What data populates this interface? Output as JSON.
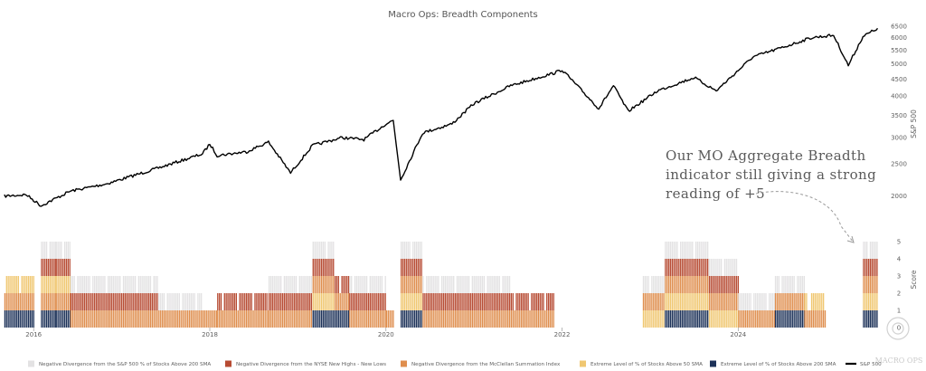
{
  "colors": {
    "negative_divergence_sma200": "#e3e2e3",
    "negative_divergence_nyse": "#b74b33",
    "negative_divergence_mcclellan": "#df8e4e",
    "extreme_sma50": "#f0c771",
    "extreme_sma200": "#1c3158",
    "sp500_line": "#000000"
  },
  "watermark": {
    "text": "MACRO OPS",
    "icon": "circular-logo-icon"
  },
  "annotation": {
    "lines": [
      "Our MO Aggregate Breadth",
      "indicator still giving a strong",
      "reading of +5"
    ]
  },
  "chart_data": {
    "title": "Macro Ops: Breadth Components",
    "price_panel": {
      "type": "line",
      "series_name": "S&P 500",
      "ylabel": "S&P 500",
      "y_scale": "log",
      "yticks": [
        2000,
        2500,
        3000,
        3500,
        4000,
        4500,
        5000,
        5500,
        6000,
        6500
      ],
      "x": [
        "2015-09",
        "2015-12",
        "2016-02",
        "2016-06",
        "2016-11",
        "2017-06",
        "2017-12",
        "2018-01",
        "2018-02",
        "2018-06",
        "2018-09",
        "2018-12",
        "2019-03",
        "2019-07",
        "2019-10",
        "2020-01",
        "2020-02",
        "2020-03",
        "2020-06",
        "2020-10",
        "2021-01",
        "2021-06",
        "2021-12",
        "2022-01",
        "2022-06",
        "2022-08",
        "2022-10",
        "2023-02",
        "2023-07",
        "2023-10",
        "2024-03",
        "2024-07",
        "2024-11",
        "2025-02",
        "2025-04",
        "2025-06",
        "2025-08"
      ],
      "y": [
        2000,
        2020,
        1870,
        2070,
        2180,
        2430,
        2680,
        2870,
        2650,
        2720,
        2910,
        2350,
        2840,
        3000,
        2960,
        3300,
        3380,
        2240,
        3100,
        3300,
        3800,
        4300,
        4700,
        4800,
        3670,
        4300,
        3600,
        4150,
        4550,
        4150,
        5250,
        5600,
        6000,
        6100,
        4950,
        6050,
        6400
      ]
    },
    "score_panel": {
      "type": "bar",
      "ylabel": "Score",
      "yticks": [
        0,
        1,
        2,
        3,
        4,
        5
      ],
      "xticks": [
        "2016",
        "2018",
        "2020",
        "2022",
        "2024"
      ],
      "series": [
        {
          "name": "Extreme Level of % of Stocks Above 200 SMA",
          "color_key": "extreme_sma200"
        },
        {
          "name": "Negative Divergence from the McClellan Summation Index",
          "color_key": "negative_divergence_mcclellan"
        },
        {
          "name": "Extreme Level of % of Stocks Above 50 SMA",
          "color_key": "extreme_sma50"
        },
        {
          "name": "Negative Divergence from the NYSE New Highs - New Lows",
          "color_key": "negative_divergence_nyse"
        },
        {
          "name": "Negative Divergence from the S&P 500 % of Stocks Above 200 SMA",
          "color_key": "negative_divergence_sma200"
        }
      ],
      "episodes": [
        {
          "start": "2015-09",
          "end": "2016-01",
          "score": 3,
          "stack": [
            "extreme_sma200",
            "negative_divergence_mcclellan",
            "extreme_sma50"
          ]
        },
        {
          "start": "2016-02",
          "end": "2016-04",
          "score": 5,
          "stack": [
            "extreme_sma200",
            "negative_divergence_mcclellan",
            "extreme_sma50",
            "negative_divergence_nyse",
            "negative_divergence_sma200"
          ]
        },
        {
          "start": "2016-04",
          "end": "2016-06",
          "score": 5,
          "stack": [
            "extreme_sma200",
            "negative_divergence_mcclellan",
            "extreme_sma50",
            "negative_divergence_nyse",
            "negative_divergence_sma200"
          ]
        },
        {
          "start": "2016-06",
          "end": "2017-06",
          "score": 3,
          "stack": [
            "negative_divergence_mcclellan",
            "negative_divergence_nyse",
            "negative_divergence_sma200"
          ]
        },
        {
          "start": "2017-06",
          "end": "2017-12",
          "score": 2,
          "stack": [
            "negative_divergence_mcclellan",
            "negative_divergence_sma200"
          ]
        },
        {
          "start": "2017-12",
          "end": "2018-02",
          "score": 1,
          "stack": [
            "negative_divergence_mcclellan"
          ]
        },
        {
          "start": "2018-02",
          "end": "2018-09",
          "score": 2,
          "stack": [
            "negative_divergence_mcclellan",
            "negative_divergence_nyse"
          ]
        },
        {
          "start": "2018-09",
          "end": "2019-03",
          "score": 3,
          "stack": [
            "negative_divergence_mcclellan",
            "negative_divergence_nyse",
            "negative_divergence_sma200"
          ]
        },
        {
          "start": "2019-03",
          "end": "2019-06",
          "score": 5,
          "stack": [
            "extreme_sma200",
            "extreme_sma50",
            "negative_divergence_mcclellan",
            "negative_divergence_nyse",
            "negative_divergence_sma200"
          ]
        },
        {
          "start": "2019-06",
          "end": "2019-08",
          "score": 3,
          "stack": [
            "extreme_sma200",
            "negative_divergence_mcclellan",
            "negative_divergence_nyse"
          ]
        },
        {
          "start": "2019-08",
          "end": "2020-01",
          "score": 3,
          "stack": [
            "negative_divergence_mcclellan",
            "negative_divergence_nyse",
            "negative_divergence_sma200"
          ]
        },
        {
          "start": "2020-01",
          "end": "2020-02",
          "score": 1,
          "stack": [
            "negative_divergence_mcclellan"
          ]
        },
        {
          "start": "2020-03",
          "end": "2020-06",
          "score": 5,
          "stack": [
            "extreme_sma200",
            "extreme_sma50",
            "negative_divergence_mcclellan",
            "negative_divergence_nyse",
            "negative_divergence_sma200"
          ]
        },
        {
          "start": "2020-06",
          "end": "2021-06",
          "score": 3,
          "stack": [
            "negative_divergence_mcclellan",
            "negative_divergence_nyse",
            "negative_divergence_sma200"
          ]
        },
        {
          "start": "2021-06",
          "end": "2021-12",
          "score": 2,
          "stack": [
            "negative_divergence_mcclellan",
            "negative_divergence_nyse"
          ]
        },
        {
          "start": "2022-12",
          "end": "2023-03",
          "score": 3,
          "stack": [
            "extreme_sma50",
            "negative_divergence_mcclellan",
            "negative_divergence_sma200"
          ]
        },
        {
          "start": "2023-03",
          "end": "2023-09",
          "score": 5,
          "stack": [
            "extreme_sma200",
            "extreme_sma50",
            "negative_divergence_mcclellan",
            "negative_divergence_nyse",
            "negative_divergence_sma200"
          ]
        },
        {
          "start": "2023-09",
          "end": "2024-01",
          "score": 4,
          "stack": [
            "extreme_sma50",
            "negative_divergence_mcclellan",
            "negative_divergence_nyse",
            "negative_divergence_sma200"
          ]
        },
        {
          "start": "2024-01",
          "end": "2024-06",
          "score": 2,
          "stack": [
            "negative_divergence_mcclellan",
            "negative_divergence_sma200"
          ]
        },
        {
          "start": "2024-06",
          "end": "2024-10",
          "score": 3,
          "stack": [
            "extreme_sma200",
            "negative_divergence_mcclellan",
            "negative_divergence_sma200"
          ]
        },
        {
          "start": "2024-10",
          "end": "2025-01",
          "score": 2,
          "stack": [
            "negative_divergence_mcclellan",
            "extreme_sma50"
          ]
        },
        {
          "start": "2025-06",
          "end": "2025-08",
          "score": 5,
          "stack": [
            "extreme_sma200",
            "extreme_sma50",
            "negative_divergence_mcclellan",
            "negative_divergence_nyse",
            "negative_divergence_sma200"
          ]
        }
      ]
    },
    "legend": [
      {
        "label": "Negative Divergence from the S&P 500 % of Stocks Above 200 SMA",
        "color_key": "negative_divergence_sma200"
      },
      {
        "label": "Negative Divergence from the NYSE New Highs - New Lows",
        "color_key": "negative_divergence_nyse"
      },
      {
        "label": "Negative Divergence from the McClellan Summation Index",
        "color_key": "negative_divergence_mcclellan"
      },
      {
        "label": "Extreme Level of % of Stocks Above 50 SMA",
        "color_key": "extreme_sma50"
      },
      {
        "label": "Extreme Level of % of Stocks Above 200 SMA",
        "color_key": "extreme_sma200"
      },
      {
        "label": "S&P 500",
        "color_key": "sp500_line"
      }
    ],
    "legend_placement": "bottom",
    "grid": false
  }
}
